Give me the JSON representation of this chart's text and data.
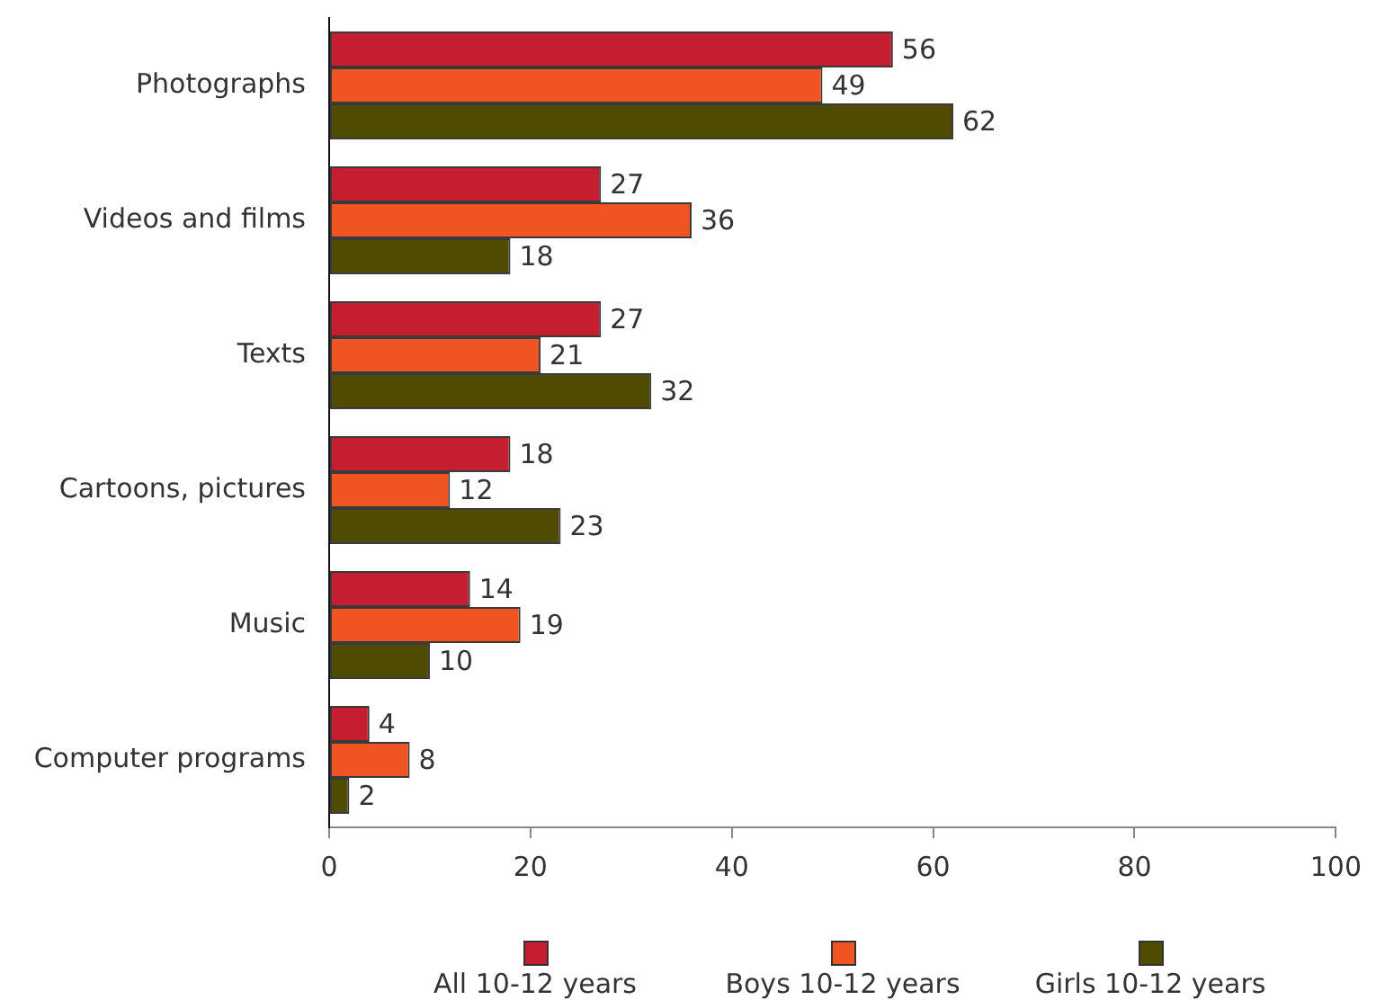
{
  "chart_data": {
    "type": "bar",
    "orientation": "horizontal",
    "categories": [
      "Photographs",
      "Videos and films",
      "Texts",
      "Cartoons, pictures",
      "Music",
      "Computer programs"
    ],
    "series": [
      {
        "name": "All 10-12 years",
        "color": "#c41e30",
        "values": [
          56,
          27,
          27,
          18,
          14,
          4
        ]
      },
      {
        "name": "Boys 10-12 years",
        "color": "#f05423",
        "values": [
          49,
          36,
          21,
          12,
          19,
          8
        ]
      },
      {
        "name": "Girls 10-12 years",
        "color": "#4f4b00",
        "values": [
          62,
          18,
          32,
          23,
          10,
          2
        ]
      }
    ],
    "xlim": [
      0,
      100
    ],
    "xticks": [
      0,
      20,
      40,
      60,
      80,
      100
    ],
    "data_labels": true,
    "legend": "bottom"
  }
}
